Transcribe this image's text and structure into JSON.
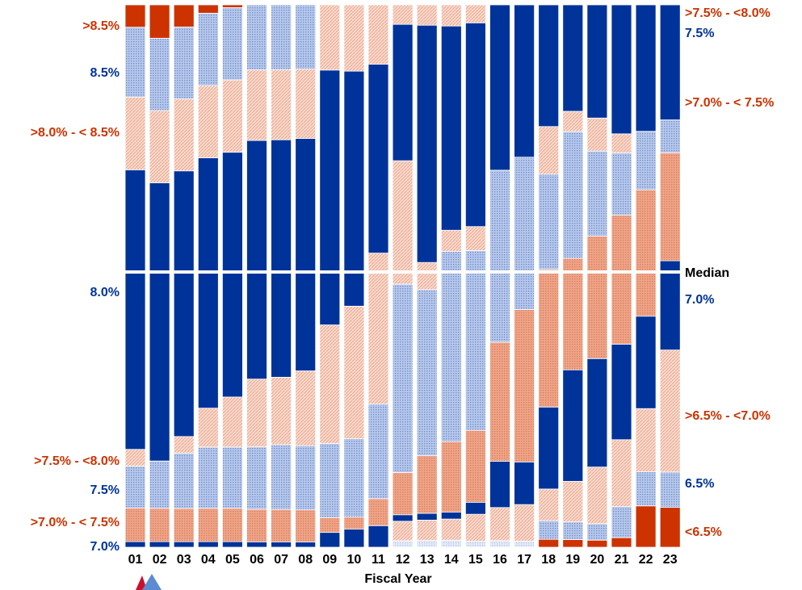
{
  "chart_data": {
    "type": "bar",
    "subtype": "100% stacked bar, split at median",
    "xlabel": "Fiscal Year",
    "categories": [
      "01",
      "02",
      "03",
      "04",
      "05",
      "06",
      "07",
      "08",
      "09",
      "10",
      "11",
      "12",
      "13",
      "14",
      "15",
      "16",
      "17",
      "18",
      "19",
      "20",
      "21",
      "22",
      "23"
    ],
    "y_unit": "percent of plans (each column sums to 100)",
    "median_label": "Median",
    "left_axis_labels": [
      {
        "text": ">8.5%",
        "color": "#cc3300"
      },
      {
        "text": "8.5%",
        "color": "#003399"
      },
      {
        "text": ">8.0% - < 8.5%",
        "color": "#cc3300"
      },
      {
        "text": "8.0%",
        "color": "#003399"
      },
      {
        "text": ">7.5% - <8.0%",
        "color": "#cc3300"
      },
      {
        "text": "7.5%",
        "color": "#003399"
      },
      {
        "text": ">7.0% - < 7.5%",
        "color": "#cc3300"
      },
      {
        "text": "7.0%",
        "color": "#003399"
      }
    ],
    "right_axis_labels": [
      {
        "text": ">7.5% - <8.0%",
        "color": "#cc3300"
      },
      {
        "text": "7.5%",
        "color": "#003399"
      },
      {
        "text": ">7.0% - < 7.5%",
        "color": "#cc3300"
      },
      {
        "text": "Median",
        "color": "#000000"
      },
      {
        "text": "7.0%",
        "color": "#003399"
      },
      {
        "text": ">6.5% - <7.0%",
        "color": "#cc3300"
      },
      {
        "text": "6.5%",
        "color": "#003399"
      },
      {
        "text": "<6.5%",
        "color": "#cc3300"
      }
    ],
    "series": [
      {
        "key": "lt65",
        "pattern": "solid",
        "color": "#cc3300",
        "values": [
          0,
          0,
          0,
          0,
          0,
          0,
          0,
          0,
          0,
          0,
          0,
          0,
          0,
          0,
          0,
          0,
          0,
          1.5,
          1.5,
          1.5,
          2,
          8.5,
          8.5
        ]
      },
      {
        "key": "r65",
        "pattern": "dotted",
        "color": "#dbe4f5",
        "values": [
          0,
          0,
          0,
          0,
          0,
          0,
          0,
          0,
          0,
          0,
          0,
          1,
          1,
          1,
          1,
          1,
          1,
          0,
          0,
          0,
          0,
          0,
          0
        ]
      },
      {
        "key": "b65",
        "pattern": "dotted",
        "color": "#9eb4e0",
        "values": [
          0,
          0,
          0,
          0,
          0,
          0,
          0,
          0,
          0,
          0,
          0,
          0,
          0,
          0,
          0,
          0,
          0,
          3.5,
          3.5,
          3.5,
          6.5,
          7,
          7.5
        ]
      },
      {
        "key": "r65_70",
        "pattern": "hatched",
        "color": "#f3c8b8",
        "values": [
          0,
          0,
          0,
          0,
          0,
          0,
          0,
          0,
          0,
          0,
          0,
          3,
          3,
          3,
          4.5,
          5,
          6,
          6,
          8,
          12,
          14,
          13,
          26
        ]
      },
      {
        "key": "at70",
        "pattern": "solid",
        "color": "#003399",
        "values": [
          1,
          1,
          1,
          1,
          1,
          1,
          1,
          1,
          2.5,
          3,
          4,
          1,
          1,
          1,
          2,
          7,
          7,
          15.5,
          22,
          23,
          20,
          19,
          19
        ]
      },
      {
        "key": "r70_75",
        "pattern": "dotted",
        "color": "#e8967a",
        "values": [
          6,
          6,
          6,
          6,
          6,
          6,
          6,
          6,
          2.5,
          2,
          5,
          6.5,
          8.5,
          10,
          12,
          18,
          25,
          26,
          22,
          26,
          27,
          26,
          23
        ]
      },
      {
        "key": "at75",
        "pattern": "dotted",
        "color": "#9eb4e0",
        "values": [
          7.5,
          8.5,
          10,
          11,
          11,
          11.5,
          12,
          12,
          12.5,
          13,
          17.5,
          29,
          24.5,
          27,
          30,
          26,
          25,
          18,
          25,
          18,
          13,
          12,
          7
        ]
      },
      {
        "key": "r75_80",
        "pattern": "hatched",
        "color": "#f3c8b8",
        "values": [
          3,
          0,
          3,
          7,
          9,
          12.5,
          12.5,
          14,
          20,
          22,
          28,
          19,
          4,
          3,
          4,
          0,
          0,
          9,
          4,
          7,
          4,
          0,
          0
        ]
      },
      {
        "key": "at80",
        "pattern": "solid",
        "color": "#003399",
        "values": [
          50,
          50,
          48,
          45,
          44,
          44,
          44,
          43.5,
          43,
          39,
          35,
          21,
          35,
          29,
          34,
          25,
          25,
          23,
          21,
          24,
          27,
          26,
          24.5
        ]
      },
      {
        "key": "r80_85",
        "pattern": "hatched",
        "color": "#f3c8b8",
        "values": [
          13,
          13,
          13,
          13,
          13,
          13,
          13,
          13,
          11,
          11,
          11,
          3,
          3,
          3,
          3,
          0,
          0,
          0,
          0,
          0,
          0,
          0,
          0
        ]
      },
      {
        "key": "at85",
        "pattern": "dotted",
        "color": "#9eb4e0",
        "values": [
          12.5,
          13,
          13,
          13,
          13,
          12,
          12,
          12,
          0,
          0,
          0,
          0,
          0,
          0,
          0,
          0,
          0,
          0,
          0,
          0,
          0,
          0,
          0
        ]
      },
      {
        "key": "gt85",
        "pattern": "solid",
        "color": "#cc3300",
        "values": [
          4,
          6,
          4,
          1.5,
          0.5,
          0,
          0,
          0,
          0,
          0,
          0,
          0,
          0,
          0,
          0,
          0,
          0,
          0,
          0,
          0,
          0,
          0,
          0
        ]
      }
    ]
  }
}
